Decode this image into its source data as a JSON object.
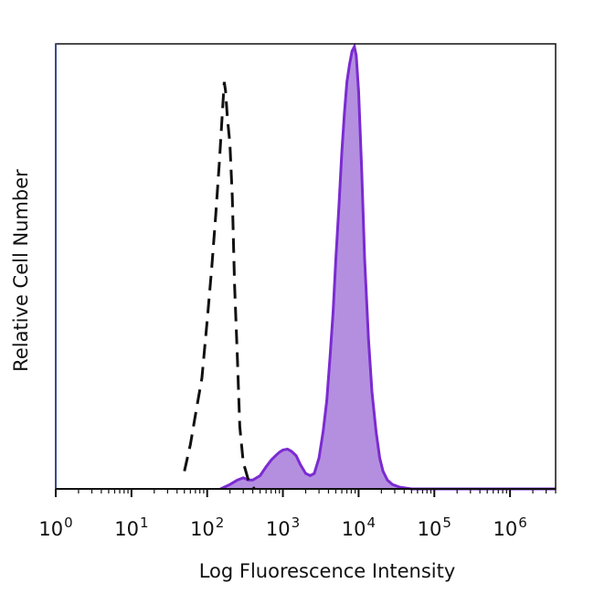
{
  "chart_data": {
    "type": "area",
    "title": "",
    "xlabel": "Log Fluorescence Intensity",
    "ylabel": "Relative Cell Number",
    "x_scale": "log",
    "xlim": [
      1,
      4000000
    ],
    "ylim": [
      0,
      1.0
    ],
    "grid": false,
    "x_ticks": [
      {
        "base": "10",
        "exp": "0",
        "value": 1
      },
      {
        "base": "10",
        "exp": "1",
        "value": 10
      },
      {
        "base": "10",
        "exp": "2",
        "value": 100
      },
      {
        "base": "10",
        "exp": "3",
        "value": 1000
      },
      {
        "base": "10",
        "exp": "4",
        "value": 10000
      },
      {
        "base": "10",
        "exp": "5",
        "value": 100000
      },
      {
        "base": "10",
        "exp": "6",
        "value": 1000000
      }
    ],
    "series": [
      {
        "style": "dashed",
        "color": "#111111",
        "fill": "none",
        "x": [
          50,
          60,
          72,
          85,
          100,
          115,
          130,
          145,
          160,
          168,
          175,
          185,
          200,
          215,
          230,
          250,
          270,
          300,
          350,
          420
        ],
        "y": [
          0.04,
          0.1,
          0.18,
          0.25,
          0.38,
          0.5,
          0.62,
          0.74,
          0.86,
          0.92,
          0.9,
          0.84,
          0.78,
          0.66,
          0.46,
          0.3,
          0.14,
          0.06,
          0.02,
          0.0
        ]
      },
      {
        "style": "filled",
        "color": "#7B2BD1",
        "fill": "#B48FE0",
        "x": [
          150,
          200,
          250,
          300,
          350,
          400,
          500,
          600,
          700,
          800,
          900,
          1000,
          1150,
          1300,
          1500,
          1700,
          2000,
          2300,
          2600,
          3000,
          3400,
          3800,
          4200,
          4600,
          5000,
          5500,
          6000,
          6500,
          7000,
          7600,
          8200,
          8800,
          9300,
          10000,
          11000,
          12000,
          13500,
          15000,
          17000,
          19000,
          21000,
          24000,
          28000,
          35000,
          50000,
          80000,
          200000,
          1000000,
          4000000
        ],
        "y": [
          0.0,
          0.01,
          0.02,
          0.025,
          0.02,
          0.02,
          0.03,
          0.05,
          0.065,
          0.075,
          0.083,
          0.088,
          0.09,
          0.085,
          0.075,
          0.055,
          0.035,
          0.03,
          0.035,
          0.07,
          0.13,
          0.2,
          0.3,
          0.4,
          0.52,
          0.64,
          0.76,
          0.85,
          0.92,
          0.96,
          0.99,
          1.0,
          0.98,
          0.9,
          0.72,
          0.52,
          0.34,
          0.22,
          0.13,
          0.07,
          0.04,
          0.02,
          0.01,
          0.004,
          0.0,
          0.0,
          0.0,
          0.0,
          0.0
        ]
      }
    ]
  },
  "colors": {
    "frame": "#111111",
    "left_axis": "#3A4A8C",
    "positive_stroke": "#7B2BD1",
    "positive_fill": "#B48FE0",
    "control_stroke": "#111111"
  }
}
